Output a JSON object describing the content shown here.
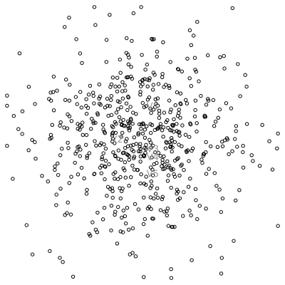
{
  "chart_data": {
    "type": "scatter",
    "title": "",
    "xlabel": "",
    "ylabel": "",
    "grid": false,
    "legend": "none",
    "xlim": [
      -10,
      10
    ],
    "ylim": [
      -10,
      10
    ],
    "point_color": "#000000",
    "label_color": "#9a9a9a",
    "point_count": 620,
    "spread_sd": 3.6,
    "annotations": [
      {
        "text": "V1",
        "x": 0.3,
        "y": 2.4
      },
      {
        "text": "V2",
        "x": -2.3,
        "y": 0.0
      },
      {
        "text": "V3",
        "x": 0.3,
        "y": -0.7
      },
      {
        "text": "V4",
        "x": 0.3,
        "y": -1.3
      },
      {
        "text": "V5",
        "x": 0.3,
        "y": -2.5
      }
    ]
  }
}
